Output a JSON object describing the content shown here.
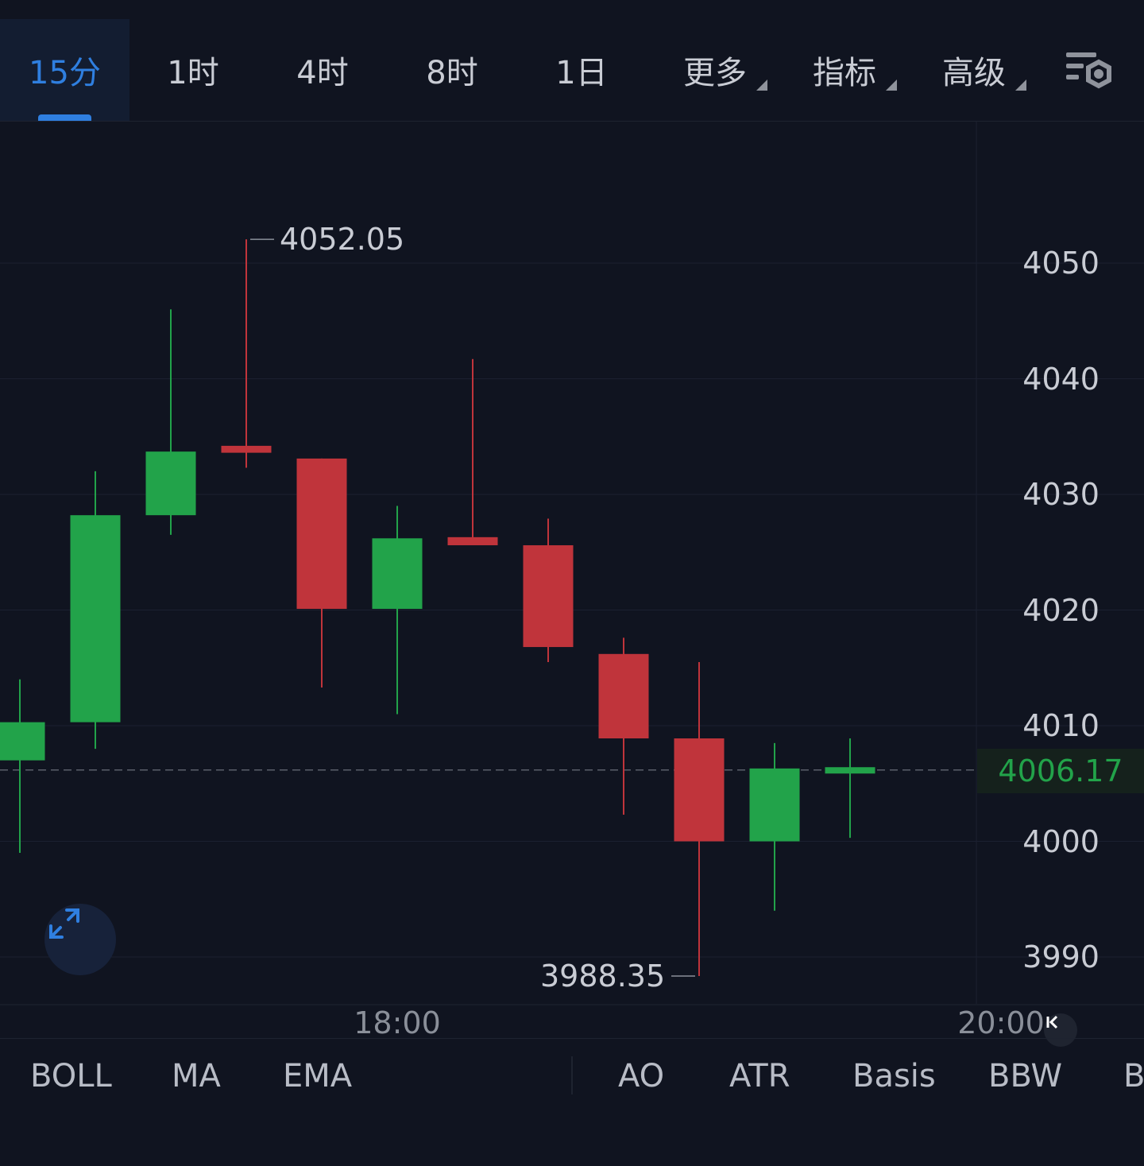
{
  "timeframes": {
    "tab_15m": "15分",
    "tab_1h": "1时",
    "tab_4h": "4时",
    "tab_8h": "8时",
    "tab_1d": "1日",
    "more": "更多",
    "indicators": "指标",
    "advanced": "高级"
  },
  "icons": {
    "settings": "chart-settings-icon",
    "expand": "expand-icon",
    "scroll_latest": "scroll-to-latest-icon"
  },
  "colors": {
    "up": "#22a34a",
    "down": "#c0343b",
    "accent": "#2f7fe0",
    "background": "#101420"
  },
  "chart_data": {
    "type": "candlestick",
    "ylim": [
      3985,
      4062
    ],
    "y_ticks": [
      "4050",
      "4040",
      "4030",
      "4020",
      "4010",
      "4000",
      "3990"
    ],
    "y_tick_values": [
      4050,
      4040,
      4030,
      4020,
      4010,
      4000,
      3990
    ],
    "x_ticks": [
      "18:00",
      "20:00"
    ],
    "grid": true,
    "last_price": "4006.17",
    "last_price_value": 4006.17,
    "high_label": "4052.05",
    "high_value": 4052.05,
    "low_label": "3988.35",
    "low_value": 3988.35,
    "candles": [
      {
        "open": 4007.0,
        "high": 4014.0,
        "low": 3999.0,
        "close": 4010.3
      },
      {
        "open": 4010.3,
        "high": 4032.0,
        "low": 4008.0,
        "close": 4028.2
      },
      {
        "open": 4028.2,
        "high": 4046.0,
        "low": 4026.5,
        "close": 4033.7
      },
      {
        "open": 4034.2,
        "high": 4052.05,
        "low": 4032.3,
        "close": 4033.6
      },
      {
        "open": 4033.1,
        "high": 4033.1,
        "low": 4013.3,
        "close": 4020.1
      },
      {
        "open": 4020.1,
        "high": 4029.0,
        "low": 4011.0,
        "close": 4026.2
      },
      {
        "open": 4026.3,
        "high": 4041.7,
        "low": 4025.6,
        "close": 4025.6
      },
      {
        "open": 4025.6,
        "high": 4027.9,
        "low": 4015.5,
        "close": 4016.8
      },
      {
        "open": 4016.2,
        "high": 4017.6,
        "low": 4002.3,
        "close": 4008.9
      },
      {
        "open": 4008.9,
        "high": 4015.5,
        "low": 3988.35,
        "close": 4000.0
      },
      {
        "open": 4000.0,
        "high": 4008.5,
        "low": 3994.0,
        "close": 4006.3
      },
      {
        "open": 4006.1,
        "high": 4008.9,
        "low": 4000.3,
        "close": 4006.17
      }
    ]
  },
  "indicator_bar": {
    "main": [
      "BOLL",
      "MA",
      "EMA"
    ],
    "sub": [
      "AO",
      "ATR",
      "Basis",
      "BBW",
      "B"
    ]
  }
}
